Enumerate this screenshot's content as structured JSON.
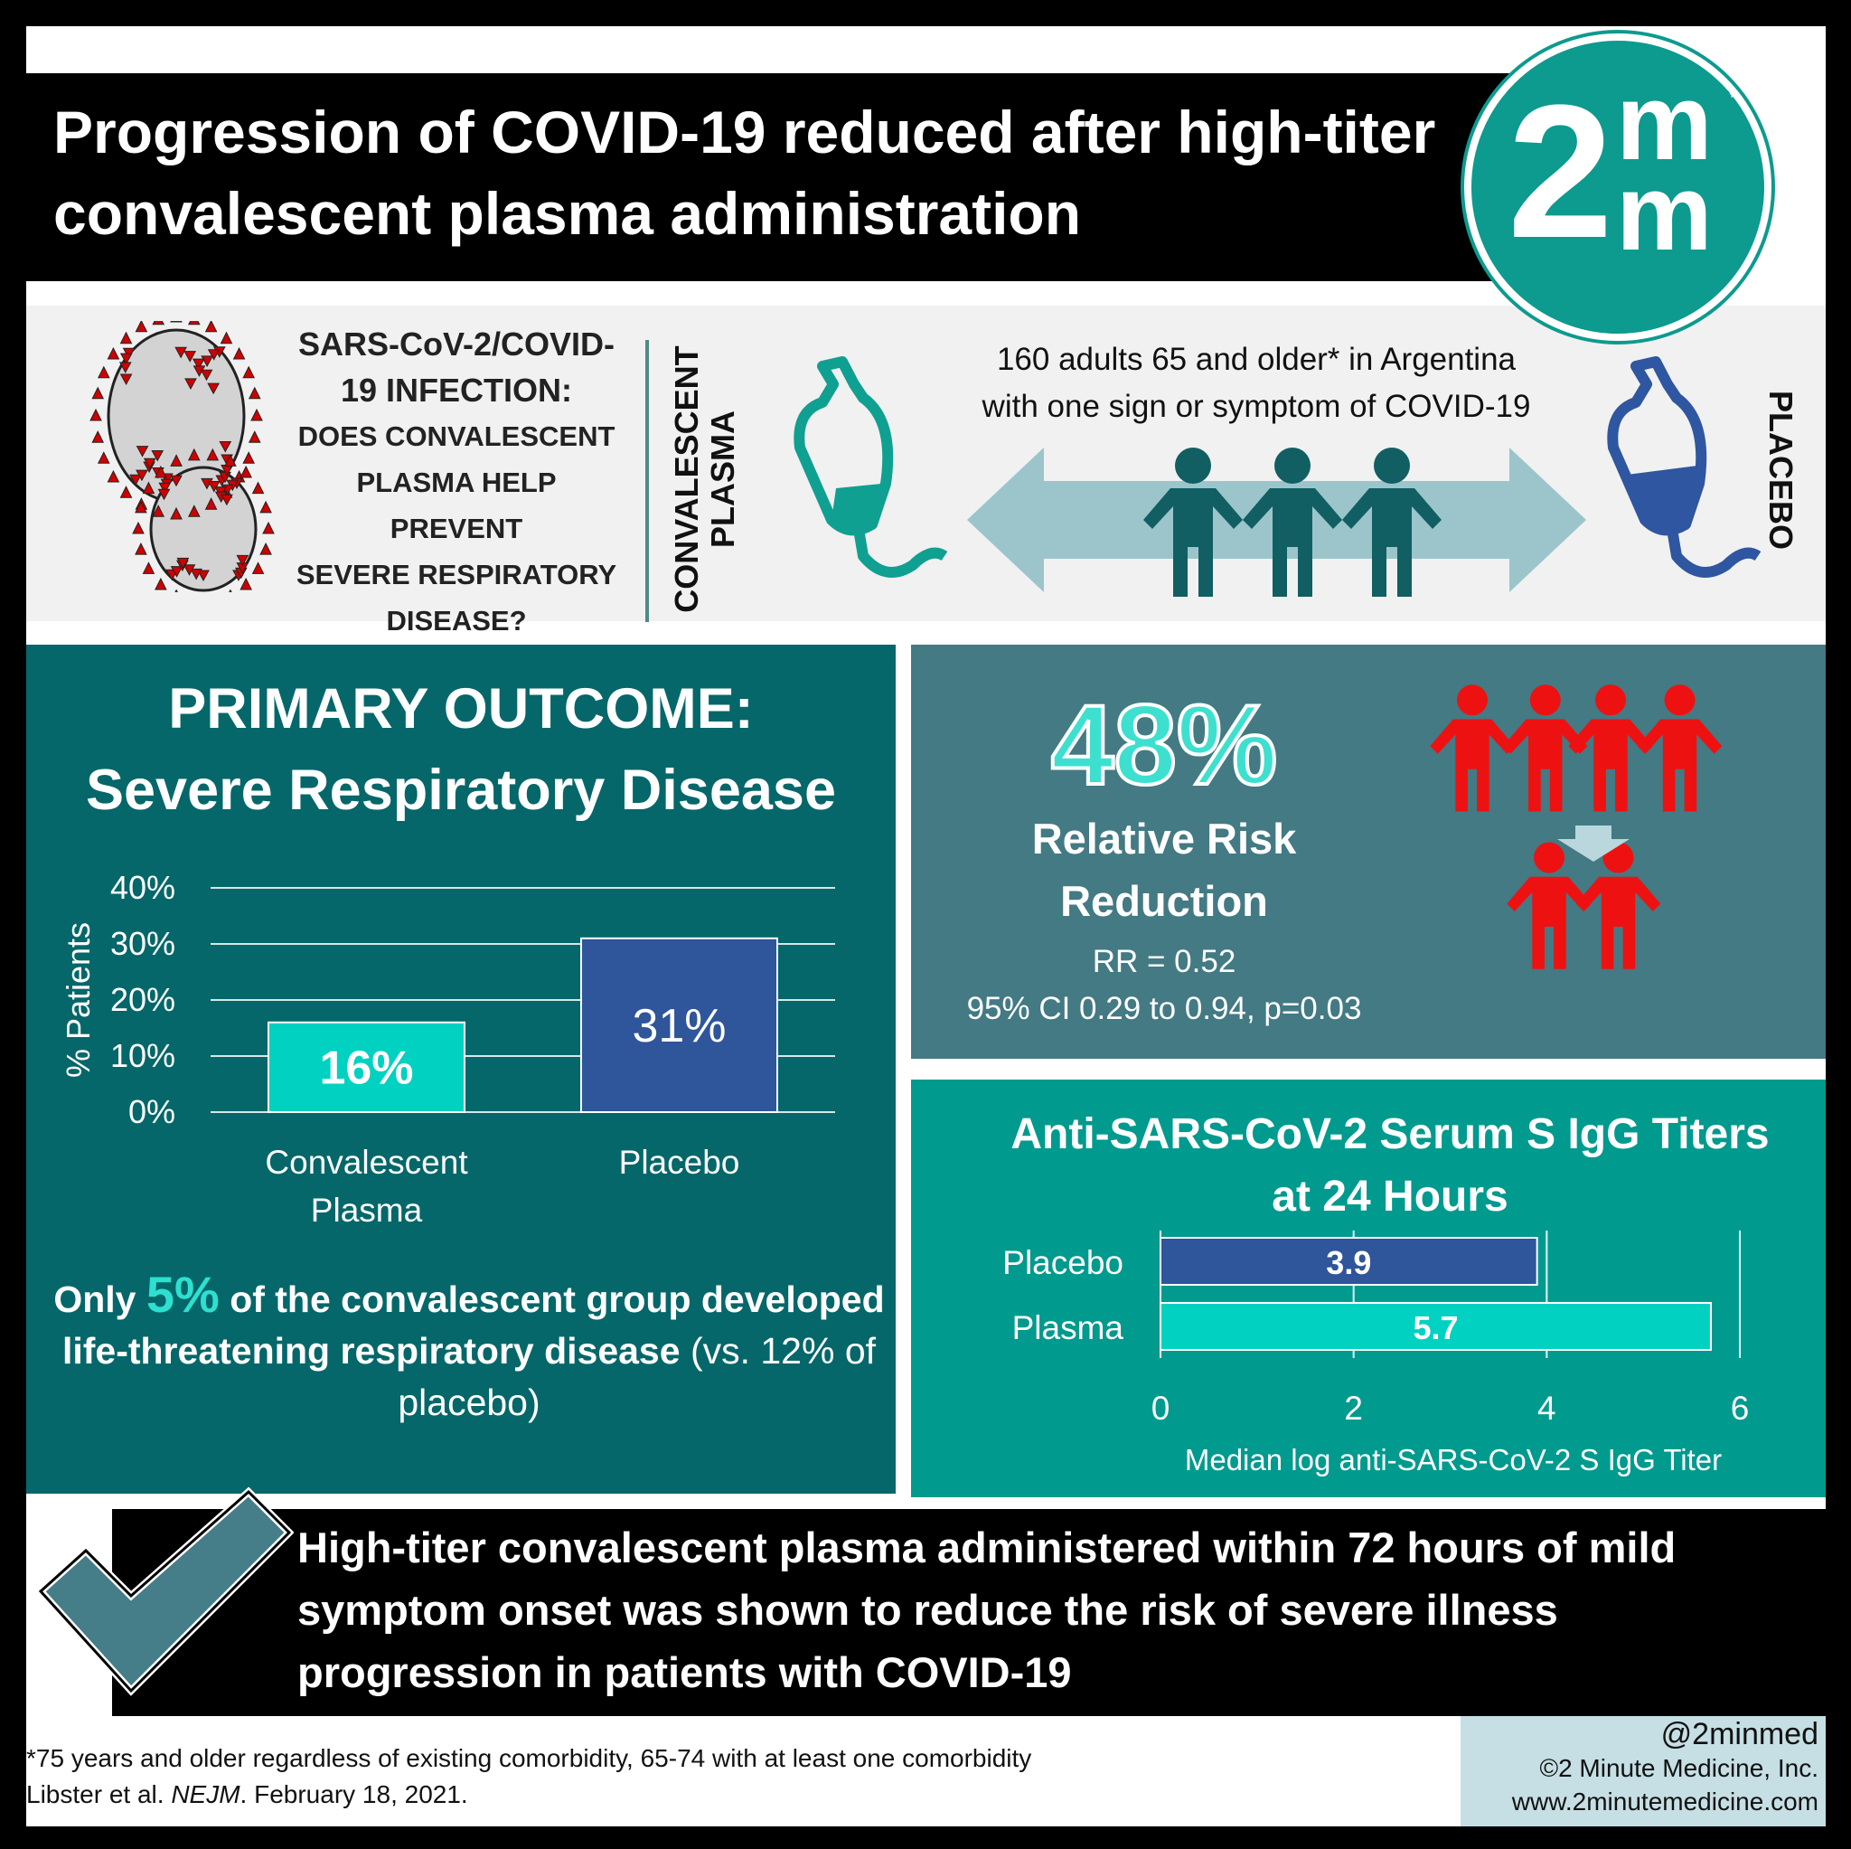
{
  "header": {
    "title_line1": "Progression of COVID-19 reduced after high-titer",
    "title_line2": "convalescent plasma administration",
    "logo_text": "2m m",
    "logo_tm": "™"
  },
  "intro": {
    "question": [
      "SARS-CoV-2/COVID-",
      "19 INFECTION:",
      "DOES CONVALESCENT",
      "PLASMA HELP PREVENT",
      "SEVERE RESPIRATORY",
      "DISEASE?"
    ],
    "arm1_label": "CONVALESCENT PLASMA",
    "arm2_label": "PLACEBO",
    "population_line1": "160 adults 65 and older* in Argentina",
    "population_line2": "with one sign or symptom of COVID-19",
    "colors": {
      "plasma": "#0fa091",
      "placebo": "#2f56a0",
      "people": "#115f63",
      "arrow": "#9cc5cb"
    }
  },
  "primary": {
    "heading1": "PRIMARY OUTCOME:",
    "heading2": "Severe Respiratory Disease",
    "note_pre": "Only ",
    "note_highlight": "5%",
    "note_post": " of the convalescent group developed life-threatening respiratory disease",
    "note_tail": " (vs. 12% of placebo)"
  },
  "rrr": {
    "value": "48%",
    "label1": "Relative Risk",
    "label2": "Reduction",
    "rr": "RR = 0.52",
    "ci": "95% CI 0.29 to 0.94, p=0.03",
    "icon_color": "#ee1111"
  },
  "chart_data": [
    {
      "type": "bar",
      "categories": [
        "Convalescent Plasma",
        "Placebo"
      ],
      "category_lines": [
        [
          "Convalescent",
          "Plasma"
        ],
        [
          "Placebo"
        ]
      ],
      "values": [
        16,
        31
      ],
      "data_labels": [
        "16%",
        "31%"
      ],
      "ylabel": "% Patients",
      "ylim": [
        0,
        40
      ],
      "yticks": [
        "0%",
        "10%",
        "20%",
        "30%",
        "40%"
      ],
      "grid": true,
      "colors": [
        "#00d1c1",
        "#2f559a"
      ]
    },
    {
      "type": "bar",
      "orientation": "horizontal",
      "title": "Anti-SARS-CoV-2 Serum S IgG Titers at 24 Hours",
      "title_line1": "Anti-SARS-CoV-2 Serum S IgG Titers",
      "title_line2": "at 24 Hours",
      "categories": [
        "Placebo",
        "Plasma"
      ],
      "values": [
        3.9,
        5.7
      ],
      "data_labels": [
        "3.9",
        "5.7"
      ],
      "xlabel": "Median log anti-SARS-CoV-2 S IgG Titer",
      "xlim": [
        0,
        6
      ],
      "xticks": [
        "0",
        "2",
        "4",
        "6"
      ],
      "grid": true,
      "colors": [
        "#2f559a",
        "#00d1c1"
      ]
    }
  ],
  "conclusion": {
    "line1": "High-titer convalescent plasma administered within 72 hours of mild",
    "line2": "symptom onset was shown to reduce the risk of severe illness",
    "line3": "progression in patients with COVID-19"
  },
  "footer": {
    "footnote": "*75 years and older regardless of existing comorbidity, 65-74 with at least one comorbidity",
    "citation_pre": "Libster et al. ",
    "citation_journal": "NEJM",
    "citation_post": ". February 18, 2021.",
    "handle": "@2minmed",
    "copyright": "©2 Minute Medicine, Inc.",
    "website": "www.2minutemedicine.com"
  }
}
